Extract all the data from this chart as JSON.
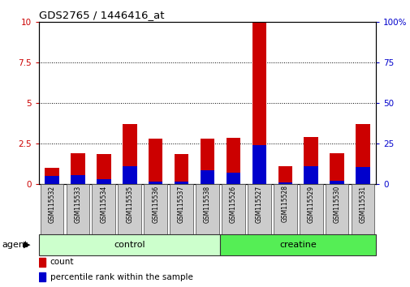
{
  "title": "GDS2765 / 1446416_at",
  "samples": [
    "GSM115532",
    "GSM115533",
    "GSM115534",
    "GSM115535",
    "GSM115536",
    "GSM115537",
    "GSM115538",
    "GSM115526",
    "GSM115527",
    "GSM115528",
    "GSM115529",
    "GSM115530",
    "GSM115531"
  ],
  "count_values": [
    1.0,
    1.9,
    1.85,
    3.7,
    2.8,
    1.85,
    2.8,
    2.85,
    10.0,
    1.1,
    2.9,
    1.9,
    3.7
  ],
  "percentile_values": [
    5,
    5.5,
    3.0,
    11.0,
    1.5,
    1.5,
    8.5,
    7.0,
    24.0,
    1.0,
    11.0,
    2.0,
    10.5
  ],
  "count_color": "#cc0000",
  "percentile_color": "#0000cc",
  "ylim_left": [
    0,
    10
  ],
  "ylim_right": [
    0,
    100
  ],
  "yticks_left": [
    0,
    2.5,
    5.0,
    7.5,
    10
  ],
  "yticks_right": [
    0,
    25,
    50,
    75,
    100
  ],
  "groups": [
    {
      "label": "control",
      "start": 0,
      "end": 7,
      "color": "#ccffcc"
    },
    {
      "label": "creatine",
      "start": 7,
      "end": 13,
      "color": "#55ee55"
    }
  ],
  "bar_width": 0.55,
  "tick_label_background": "#cccccc",
  "grid_style": "dotted"
}
